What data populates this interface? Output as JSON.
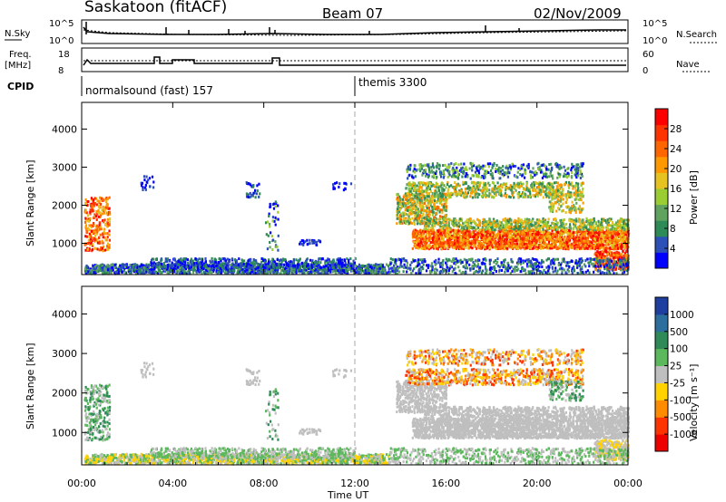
{
  "header": {
    "radar": "Saskatoon (fitACF)",
    "beam": "Beam 07",
    "date": "02/Nov/2009"
  },
  "noise_panel": {
    "left_label": "N.Sky",
    "right_label": "N.Search",
    "left_ticks": [
      "10^5",
      "10^0"
    ],
    "right_ticks": [
      "10^5",
      "10^0"
    ]
  },
  "freq_panel": {
    "left_label_1": "Freq.",
    "left_label_2": "[MHz]",
    "right_label": "Nave",
    "left_ticks": [
      "18",
      "8"
    ],
    "right_ticks": [
      "60",
      "0"
    ]
  },
  "cpid": {
    "label": "CPID",
    "segments": [
      {
        "name": "normalsound (fast) 157",
        "start_hr": 0
      },
      {
        "name": "themis 3300",
        "start_hr": 12
      }
    ]
  },
  "chart_data": [
    {
      "type": "heatmap",
      "title": "Power",
      "ylabel": "Slant Range [km]",
      "ylim": [
        180,
        4700
      ],
      "y_ticks": [
        1000,
        2000,
        3000,
        4000
      ],
      "colorbar": {
        "label": "Power [dB]",
        "ticks": [
          "4",
          "8",
          "12",
          "16",
          "20",
          "24",
          "28"
        ],
        "colors": [
          "#0000ff",
          "#2c4fb8",
          "#2e8b57",
          "#5fa35f",
          "#9acd32",
          "#e6c320",
          "#ff9900",
          "#ff6600",
          "#ff3300",
          "#ff0000"
        ]
      }
    },
    {
      "type": "heatmap",
      "title": "Velocity",
      "ylabel": "Slant Range [km]",
      "ylim": [
        180,
        4700
      ],
      "y_ticks": [
        1000,
        2000,
        3000,
        4000
      ],
      "colorbar": {
        "label": "Velocity [m s⁻¹]",
        "ticks": [
          "1000",
          "500",
          "100",
          "25",
          "-25",
          "-100",
          "-500",
          "-1000"
        ],
        "colors": [
          "#1e3fa0",
          "#2c6e9e",
          "#2e8b57",
          "#5cb85c",
          "#bfbfbf",
          "#ffd200",
          "#ff8c00",
          "#ff3300",
          "#ee0000"
        ]
      }
    }
  ],
  "x_axis": {
    "label": "Time UT",
    "xlim": [
      0,
      24
    ],
    "ticks": [
      "00:00",
      "04:00",
      "08:00",
      "12:00",
      "16:00",
      "20:00",
      "00:00"
    ]
  }
}
